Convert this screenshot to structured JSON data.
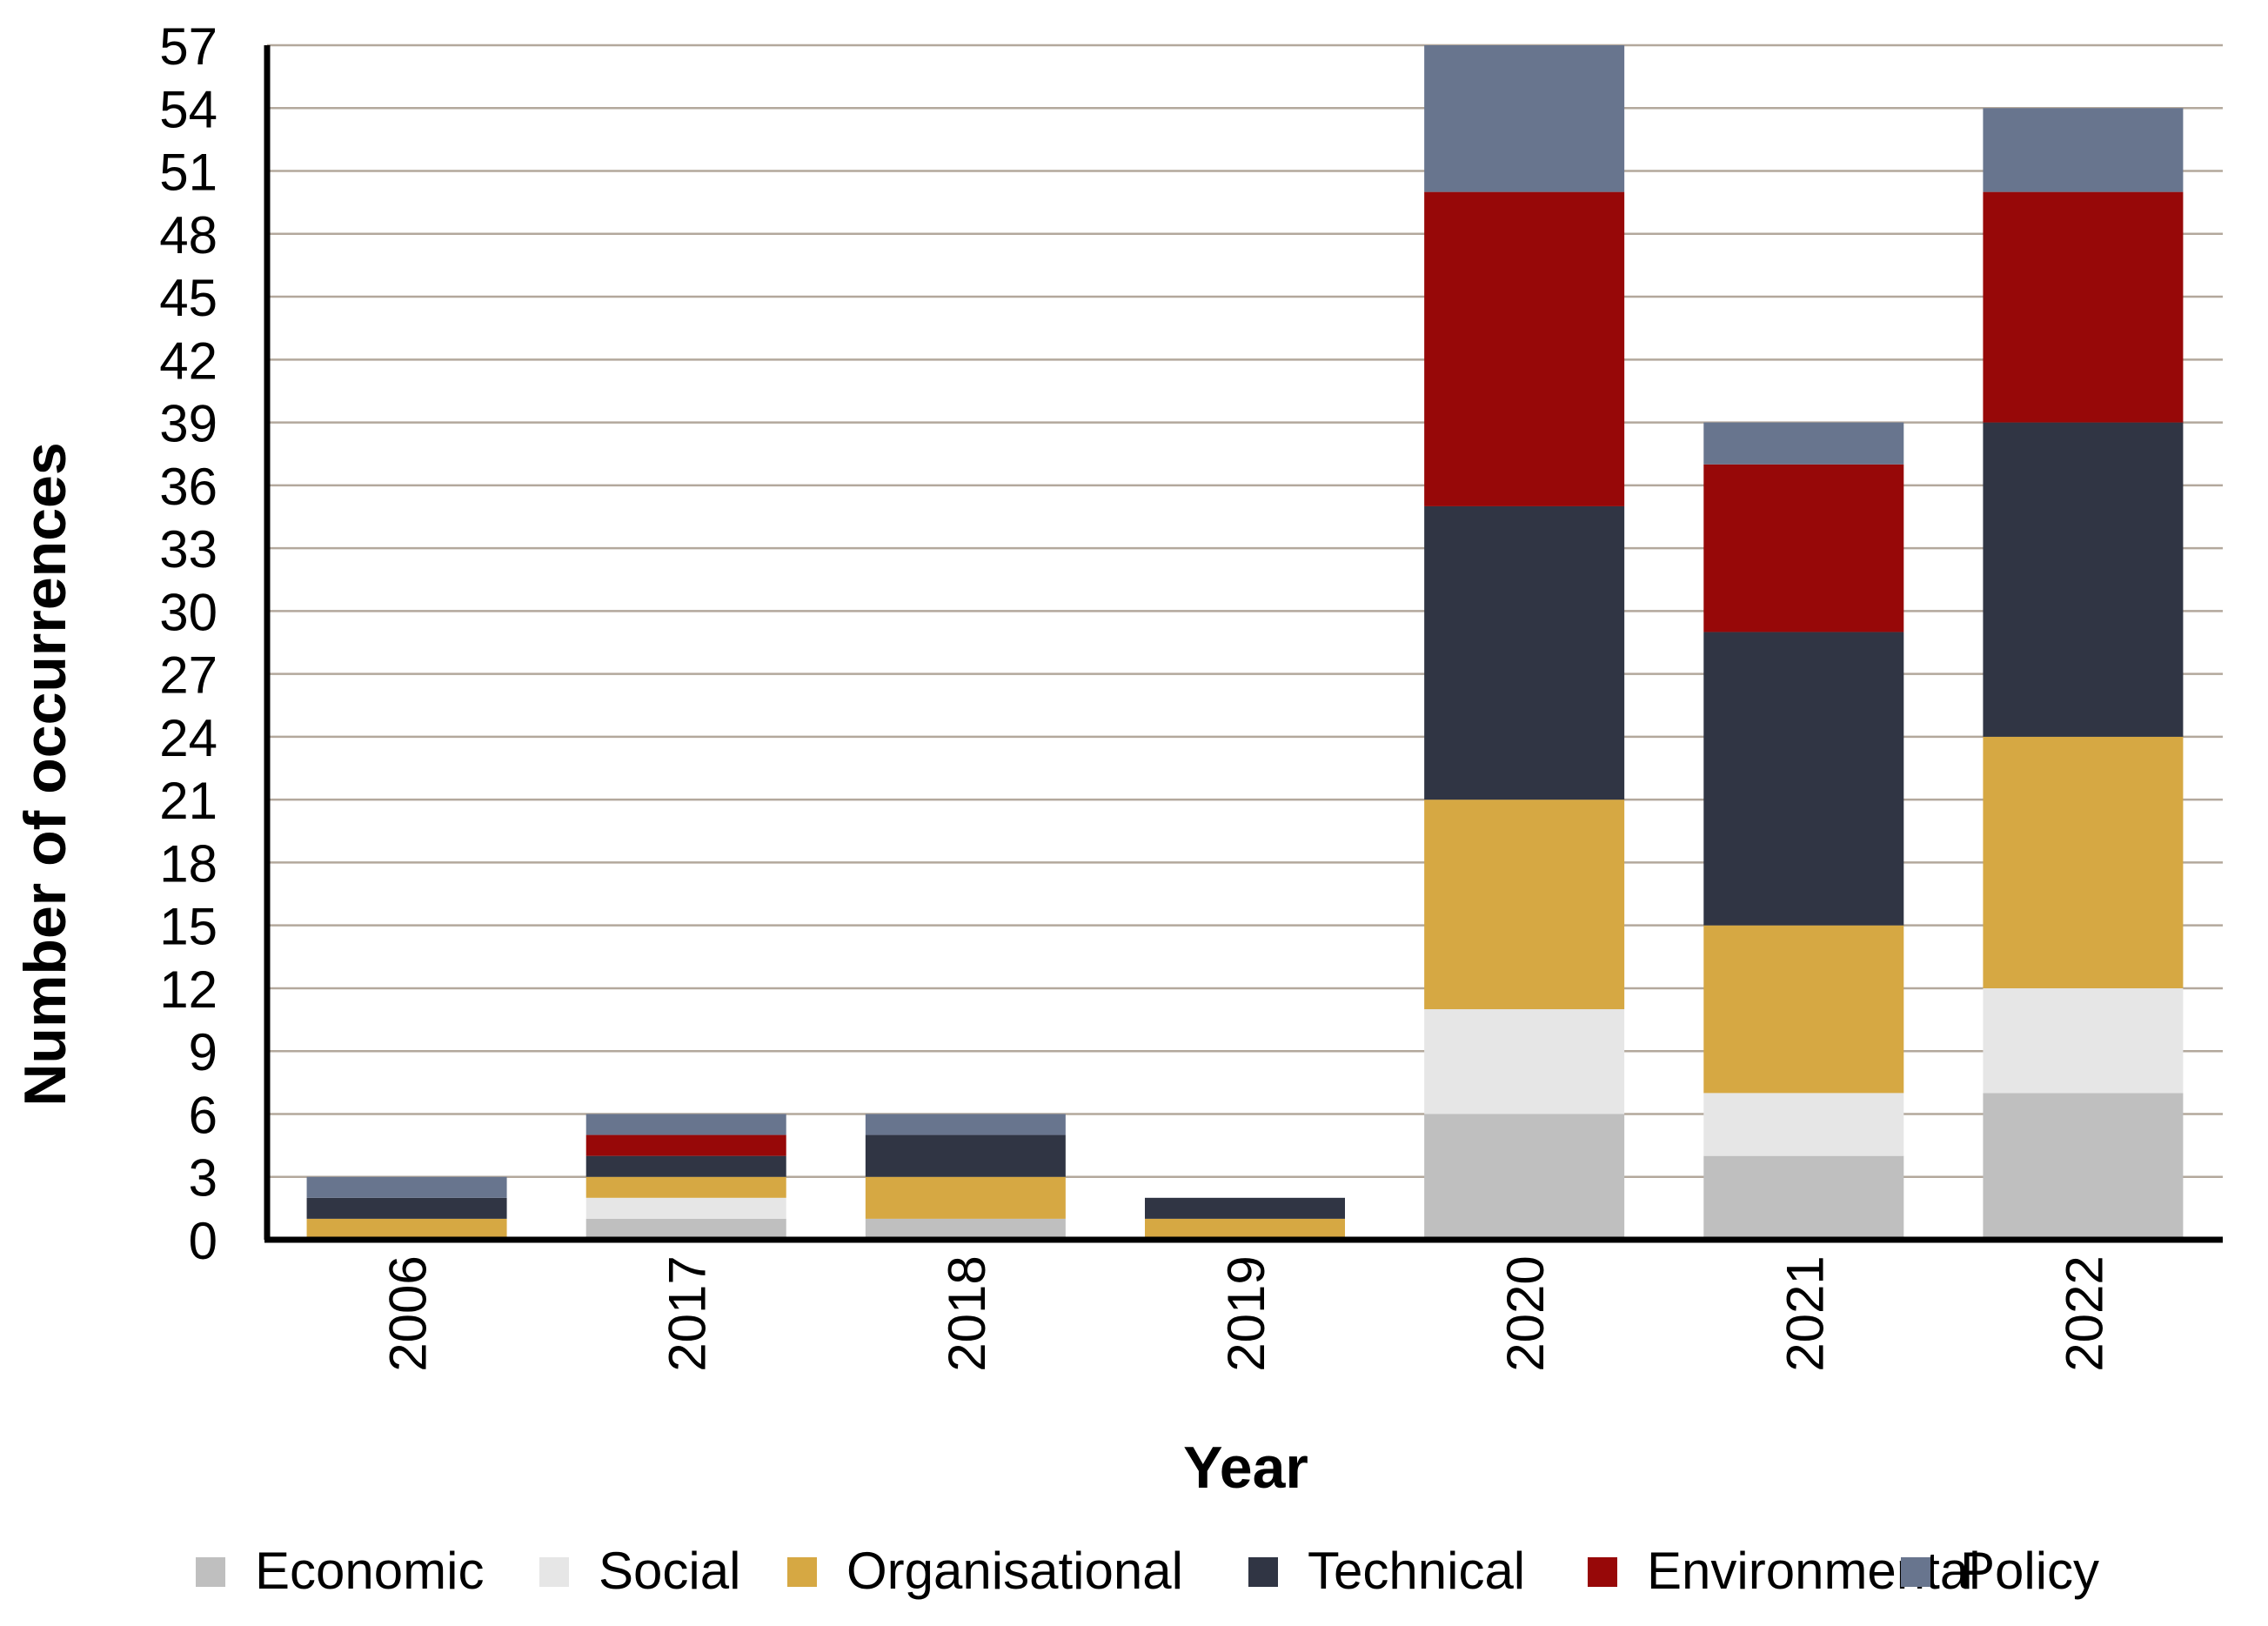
{
  "chart_data": {
    "type": "bar",
    "stacked": true,
    "title": "",
    "xlabel": "Year",
    "ylabel": "Number of occurrences",
    "categories": [
      "2006",
      "2017",
      "2018",
      "2019",
      "2020",
      "2021",
      "2022"
    ],
    "ylim": [
      0,
      57
    ],
    "yticks": [
      0,
      3,
      6,
      9,
      12,
      15,
      18,
      21,
      24,
      27,
      30,
      33,
      36,
      39,
      42,
      45,
      48,
      51,
      54,
      57
    ],
    "grid": true,
    "legend_position": "bottom",
    "series": [
      {
        "name": "Economic",
        "color": "#bfbfbf",
        "values": [
          0,
          1,
          1,
          0,
          6,
          4,
          7
        ]
      },
      {
        "name": "Social",
        "color": "#e6e6e6",
        "values": [
          0,
          1,
          0,
          0,
          5,
          3,
          5
        ]
      },
      {
        "name": "Organisational",
        "color": "#d6a843",
        "values": [
          1,
          1,
          2,
          1,
          10,
          8,
          12
        ]
      },
      {
        "name": "Technical",
        "color": "#303544",
        "values": [
          1,
          1,
          2,
          1,
          14,
          14,
          15
        ]
      },
      {
        "name": "Environmental",
        "color": "#970808",
        "values": [
          0,
          1,
          0,
          0,
          15,
          8,
          11
        ]
      },
      {
        "name": "Policy",
        "color": "#68758e",
        "values": [
          1,
          1,
          1,
          0,
          7,
          2,
          4
        ]
      }
    ]
  }
}
